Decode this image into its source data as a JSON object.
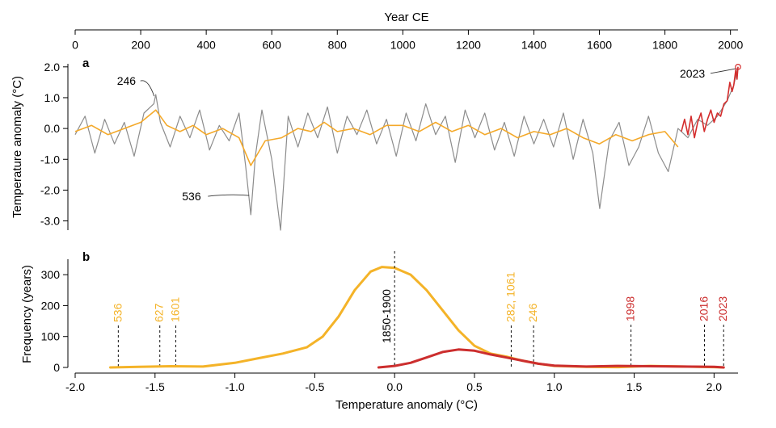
{
  "chart_data": [
    {
      "panel": "a",
      "type": "line",
      "xlabel": "Year CE",
      "ylabel": "Temperature anomaly (°C)",
      "xlim": [
        0,
        2023
      ],
      "ylim": [
        -3.3,
        2.1
      ],
      "xticks": [
        0,
        200,
        400,
        600,
        800,
        1000,
        1200,
        1400,
        1600,
        1800,
        2000
      ],
      "yticks": [
        2.0,
        1.0,
        0.0,
        -1.0,
        -2.0,
        -3.0
      ],
      "ytick_labels": [
        "2.0",
        "1.0",
        "0.0",
        "-1.0",
        "-2.0",
        "-3.0"
      ],
      "colors": {
        "annual": "#8c8c8c",
        "smoothed": "#f4a92a",
        "instrumental": "#d42d2d"
      },
      "series": [
        {
          "role": "annual",
          "x": [
            0,
            30,
            60,
            90,
            120,
            150,
            180,
            210,
            240,
            246,
            260,
            290,
            320,
            350,
            380,
            410,
            440,
            470,
            500,
            520,
            536,
            550,
            570,
            600,
            627,
            650,
            680,
            710,
            740,
            770,
            800,
            830,
            860,
            890,
            920,
            950,
            980,
            1010,
            1040,
            1070,
            1100,
            1130,
            1160,
            1190,
            1220,
            1250,
            1280,
            1310,
            1340,
            1370,
            1400,
            1430,
            1460,
            1490,
            1520,
            1550,
            1580,
            1601,
            1630,
            1660,
            1690,
            1720,
            1750,
            1780,
            1810,
            1840,
            1870,
            1900,
            1930,
            1960,
            1990,
            2010,
            2023
          ],
          "y": [
            -0.2,
            0.4,
            -0.8,
            0.3,
            -0.5,
            0.2,
            -0.9,
            0.5,
            0.8,
            1.1,
            0.2,
            -0.6,
            0.4,
            -0.3,
            0.6,
            -0.7,
            0.1,
            -0.4,
            0.5,
            -1.2,
            -2.8,
            -0.9,
            0.6,
            -1.0,
            -3.3,
            0.4,
            -0.6,
            0.5,
            -0.3,
            0.7,
            -0.8,
            0.4,
            -0.2,
            0.6,
            -0.5,
            0.3,
            -0.9,
            0.5,
            -0.4,
            0.8,
            -0.2,
            0.4,
            -1.1,
            0.6,
            -0.3,
            0.5,
            -0.7,
            0.2,
            -0.9,
            0.4,
            -0.5,
            0.3,
            -0.6,
            0.5,
            -1.0,
            0.3,
            -0.8,
            -2.6,
            -0.4,
            0.2,
            -1.2,
            -0.6,
            0.4,
            -0.8,
            -1.4,
            0.0,
            -0.3,
            0.3,
            0.1,
            0.4,
            0.9,
            1.4,
            2.0
          ]
        },
        {
          "role": "smoothed",
          "x": [
            0,
            50,
            100,
            150,
            200,
            246,
            280,
            320,
            360,
            400,
            450,
            500,
            536,
            580,
            630,
            680,
            720,
            760,
            800,
            850,
            900,
            950,
            1000,
            1050,
            1100,
            1150,
            1200,
            1250,
            1300,
            1350,
            1400,
            1450,
            1500,
            1550,
            1600,
            1650,
            1700,
            1750,
            1800,
            1840
          ],
          "y": [
            -0.1,
            0.1,
            -0.2,
            0.0,
            0.2,
            0.6,
            0.1,
            -0.1,
            0.1,
            -0.2,
            0.0,
            -0.3,
            -1.2,
            -0.4,
            -0.3,
            0.0,
            -0.1,
            0.2,
            -0.1,
            0.0,
            -0.2,
            0.1,
            0.1,
            -0.1,
            0.2,
            -0.1,
            0.1,
            -0.2,
            0.0,
            -0.3,
            -0.1,
            -0.2,
            0.0,
            -0.3,
            -0.5,
            -0.2,
            -0.4,
            -0.2,
            -0.1,
            -0.6
          ]
        },
        {
          "role": "instrumental",
          "x": [
            1850,
            1860,
            1870,
            1880,
            1890,
            1900,
            1910,
            1920,
            1930,
            1940,
            1950,
            1960,
            1970,
            1980,
            1990,
            1998,
            2005,
            2010,
            2016,
            2020,
            2023
          ],
          "y": [
            -0.1,
            0.3,
            -0.2,
            0.4,
            -0.3,
            0.2,
            0.5,
            -0.1,
            0.3,
            0.6,
            0.2,
            0.5,
            0.4,
            0.8,
            0.9,
            1.5,
            1.2,
            1.4,
            1.9,
            1.6,
            2.0
          ]
        }
      ],
      "annotations": [
        {
          "label": "246",
          "x": 246,
          "y": 1.1
        },
        {
          "label": "536",
          "x": 536,
          "y": -2.2
        },
        {
          "label": "2023",
          "x": 2023,
          "y": 2.0
        }
      ]
    },
    {
      "panel": "b",
      "type": "line",
      "xlabel": "Temperature anomaly (°C)",
      "ylabel": "Frequency (years)",
      "xlim": [
        -2.0,
        2.15
      ],
      "ylim": [
        0,
        350
      ],
      "xticks": [
        -2.0,
        -1.5,
        -1.0,
        -0.5,
        0.0,
        0.5,
        1.0,
        1.5,
        2.0
      ],
      "xtick_labels": [
        "-2.0",
        "-1.5",
        "-1.0",
        "-0.5",
        "0.0",
        "0.5",
        "1.0",
        "1.5",
        "2.0"
      ],
      "yticks": [
        0,
        100,
        200,
        300
      ],
      "colors": {
        "proxy": "#f4b328",
        "instrumental": "#cc2e2e"
      },
      "series": [
        {
          "role": "proxy",
          "x": [
            -1.78,
            -1.6,
            -1.4,
            -1.2,
            -1.0,
            -0.85,
            -0.7,
            -0.55,
            -0.45,
            -0.35,
            -0.25,
            -0.15,
            -0.08,
            0.0,
            0.1,
            0.2,
            0.3,
            0.4,
            0.5,
            0.6,
            0.7,
            0.8,
            0.9,
            1.0,
            1.2,
            1.4,
            1.6,
            1.8,
            2.0,
            2.06
          ],
          "y": [
            0,
            2,
            4,
            3,
            15,
            30,
            45,
            65,
            100,
            165,
            250,
            310,
            325,
            322,
            300,
            250,
            185,
            120,
            70,
            45,
            35,
            22,
            12,
            5,
            2,
            1,
            5,
            3,
            1,
            0
          ]
        },
        {
          "role": "instrumental",
          "x": [
            -0.1,
            0.0,
            0.1,
            0.2,
            0.3,
            0.4,
            0.5,
            0.6,
            0.7,
            0.8,
            0.9,
            1.0,
            1.2,
            1.4,
            1.6,
            1.8,
            2.0,
            2.06
          ],
          "y": [
            0,
            5,
            15,
            32,
            50,
            58,
            54,
            42,
            32,
            22,
            12,
            6,
            3,
            5,
            4,
            3,
            2,
            0
          ]
        }
      ],
      "reference_line": {
        "label": "1850-1900",
        "x": 0.0
      },
      "markers": [
        {
          "label": "536",
          "x": -1.73,
          "group": "proxy"
        },
        {
          "label": "627",
          "x": -1.47,
          "group": "proxy"
        },
        {
          "label": "1601",
          "x": -1.37,
          "group": "proxy"
        },
        {
          "label": "282, 1061",
          "x": 0.73,
          "group": "proxy"
        },
        {
          "label": "246",
          "x": 0.87,
          "group": "proxy"
        },
        {
          "label": "1998",
          "x": 1.48,
          "group": "instrumental"
        },
        {
          "label": "2016",
          "x": 1.94,
          "group": "instrumental"
        },
        {
          "label": "2023",
          "x": 2.06,
          "group": "instrumental"
        }
      ]
    }
  ]
}
